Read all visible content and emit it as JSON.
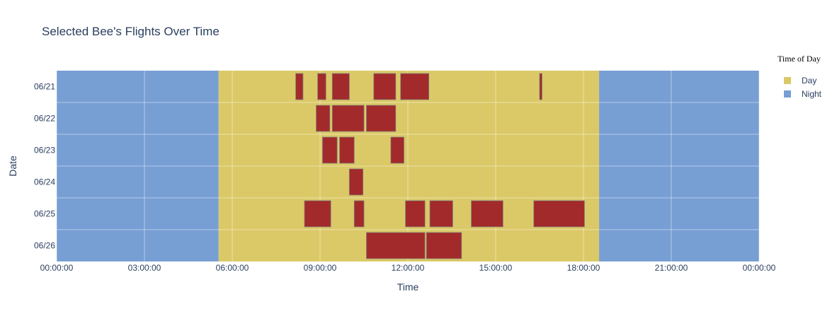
{
  "chart_data": {
    "type": "timeline",
    "title": "Selected Bee's Flights Over Time",
    "xlabel": "Time",
    "ylabel": "Date",
    "x_ticks": [
      "00:00:00",
      "03:00:00",
      "06:00:00",
      "09:00:00",
      "12:00:00",
      "15:00:00",
      "18:00:00",
      "21:00:00",
      "00:00:00"
    ],
    "x_range_hours": [
      0,
      24
    ],
    "dates": [
      "06/21",
      "06/22",
      "06/23",
      "06/24",
      "06/25",
      "06/26"
    ],
    "legend": {
      "title": "Time of Day",
      "placement": "top-right",
      "items": [
        {
          "name": "Day",
          "color": "#dbc967"
        },
        {
          "name": "Night",
          "color": "#789fd4"
        }
      ]
    },
    "day_period": {
      "start": "05:32",
      "end": "18:32"
    },
    "flight_color": "#a32a2a",
    "flights": [
      {
        "date": "06/21",
        "start": "08:10",
        "end": "08:25"
      },
      {
        "date": "06/21",
        "start": "08:55",
        "end": "09:12"
      },
      {
        "date": "06/21",
        "start": "09:25",
        "end": "10:00"
      },
      {
        "date": "06/21",
        "start": "10:50",
        "end": "11:35"
      },
      {
        "date": "06/21",
        "start": "11:45",
        "end": "12:43"
      },
      {
        "date": "06/21",
        "start": "16:30",
        "end": "16:35"
      },
      {
        "date": "06/22",
        "start": "08:52",
        "end": "09:20"
      },
      {
        "date": "06/22",
        "start": "09:25",
        "end": "10:30"
      },
      {
        "date": "06/22",
        "start": "10:35",
        "end": "11:35"
      },
      {
        "date": "06/23",
        "start": "09:05",
        "end": "09:35"
      },
      {
        "date": "06/23",
        "start": "09:40",
        "end": "10:10"
      },
      {
        "date": "06/23",
        "start": "11:25",
        "end": "11:52"
      },
      {
        "date": "06/24",
        "start": "10:00",
        "end": "10:28"
      },
      {
        "date": "06/25",
        "start": "08:28",
        "end": "09:22"
      },
      {
        "date": "06/25",
        "start": "10:10",
        "end": "10:30"
      },
      {
        "date": "06/25",
        "start": "11:55",
        "end": "12:35"
      },
      {
        "date": "06/25",
        "start": "12:45",
        "end": "13:32"
      },
      {
        "date": "06/25",
        "start": "14:10",
        "end": "15:15"
      },
      {
        "date": "06/25",
        "start": "16:18",
        "end": "18:02"
      },
      {
        "date": "06/26",
        "start": "10:35",
        "end": "12:35"
      },
      {
        "date": "06/26",
        "start": "12:38",
        "end": "13:50"
      }
    ]
  }
}
